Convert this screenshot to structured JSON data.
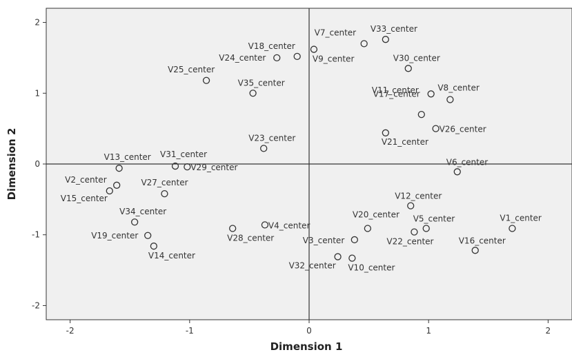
{
  "chart_data": {
    "type": "scatter",
    "xlabel": "Dimension 1",
    "ylabel": "Dimension 2",
    "xlim": [
      -2.2,
      2.2
    ],
    "ylim": [
      -2.2,
      2.2
    ],
    "xticks": [
      "-2",
      "-1",
      "0",
      "1",
      "2"
    ],
    "yticks": [
      "2",
      "1",
      "0",
      "-1",
      "-2"
    ],
    "grid": false,
    "reference_lines": {
      "x": 0,
      "y": 0
    },
    "colors": {
      "plot_background": "#f0f0f0",
      "marker": "#333333",
      "axis": "#333333"
    },
    "points": [
      {
        "label": "V1_center",
        "x": 1.7,
        "y": -0.91
      },
      {
        "label": "V2_center",
        "x": -1.61,
        "y": -0.3
      },
      {
        "label": "V3_center",
        "x": 0.38,
        "y": -1.07
      },
      {
        "label": "V4_center",
        "x": -0.37,
        "y": -0.86
      },
      {
        "label": "V5_center",
        "x": 0.98,
        "y": -0.91
      },
      {
        "label": "V6_center",
        "x": 1.24,
        "y": -0.11
      },
      {
        "label": "V7_center",
        "x": 0.46,
        "y": 1.7
      },
      {
        "label": "V8_center",
        "x": 1.18,
        "y": 0.91
      },
      {
        "label": "V9_center",
        "x": 0.04,
        "y": 1.62
      },
      {
        "label": "V10_center",
        "x": 0.36,
        "y": -1.33
      },
      {
        "label": "V11_center",
        "x": 0.94,
        "y": 0.7
      },
      {
        "label": "V12_center",
        "x": 0.85,
        "y": -0.59
      },
      {
        "label": "V13_center",
        "x": -1.59,
        "y": -0.06
      },
      {
        "label": "V14_center",
        "x": -1.3,
        "y": -1.16
      },
      {
        "label": "V15_center",
        "x": -1.67,
        "y": -0.38
      },
      {
        "label": "V16_center",
        "x": 1.39,
        "y": -1.22
      },
      {
        "label": "V17_center",
        "x": 1.02,
        "y": 0.99
      },
      {
        "label": "V18_center",
        "x": -0.1,
        "y": 1.52
      },
      {
        "label": "V19_center",
        "x": -1.35,
        "y": -1.01
      },
      {
        "label": "V20_center",
        "x": 0.49,
        "y": -0.91
      },
      {
        "label": "V21_center",
        "x": 0.64,
        "y": 0.44
      },
      {
        "label": "V22_center",
        "x": 0.88,
        "y": -0.96
      },
      {
        "label": "V23_center",
        "x": -0.38,
        "y": 0.22
      },
      {
        "label": "V24_center",
        "x": -0.27,
        "y": 1.5
      },
      {
        "label": "V25_center",
        "x": -0.86,
        "y": 1.18
      },
      {
        "label": "V26_center",
        "x": 1.06,
        "y": 0.5
      },
      {
        "label": "V27_center",
        "x": -1.21,
        "y": -0.42
      },
      {
        "label": "V28_center",
        "x": -0.64,
        "y": -0.91
      },
      {
        "label": "V29_center",
        "x": -1.02,
        "y": -0.04
      },
      {
        "label": "V30_center",
        "x": 0.83,
        "y": 1.35
      },
      {
        "label": "V31_center",
        "x": -1.12,
        "y": -0.03
      },
      {
        "label": "V32_center",
        "x": 0.24,
        "y": -1.31
      },
      {
        "label": "V33_center",
        "x": 0.64,
        "y": 1.76
      },
      {
        "label": "V34_center",
        "x": -1.46,
        "y": -0.82
      },
      {
        "label": "V35_center",
        "x": -0.47,
        "y": 1.0
      }
    ]
  }
}
